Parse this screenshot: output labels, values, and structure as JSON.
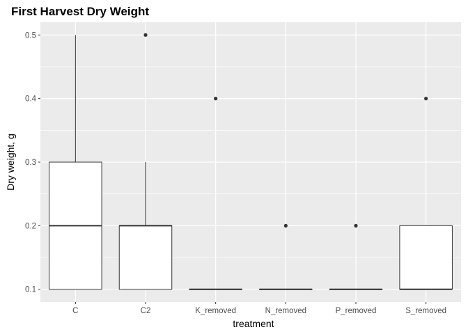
{
  "chart_data": {
    "type": "boxplot",
    "title": "First Harvest Dry Weight",
    "xlabel": "treatment",
    "ylabel": "Dry weight, g",
    "ylim": [
      0.08,
      0.52
    ],
    "yticks": [
      0.1,
      0.2,
      0.3,
      0.4,
      0.5
    ],
    "ytick_labels": [
      "0.1",
      "0.2",
      "0.3",
      "0.4",
      "0.5"
    ],
    "grid": true,
    "categories": [
      "C",
      "C2",
      "K_removed",
      "N_removed",
      "P_removed",
      "S_removed"
    ],
    "boxes": [
      {
        "category": "C",
        "q1": 0.1,
        "median": 0.2,
        "q3": 0.3,
        "whisker_low": 0.1,
        "whisker_high": 0.5,
        "outliers": []
      },
      {
        "category": "C2",
        "q1": 0.1,
        "median": 0.2,
        "q3": 0.2,
        "whisker_low": 0.1,
        "whisker_high": 0.3,
        "outliers": [
          0.5
        ]
      },
      {
        "category": "K_removed",
        "q1": 0.1,
        "median": 0.1,
        "q3": 0.1,
        "whisker_low": 0.1,
        "whisker_high": 0.1,
        "outliers": [
          0.4
        ]
      },
      {
        "category": "N_removed",
        "q1": 0.1,
        "median": 0.1,
        "q3": 0.1,
        "whisker_low": 0.1,
        "whisker_high": 0.1,
        "outliers": [
          0.2
        ]
      },
      {
        "category": "P_removed",
        "q1": 0.1,
        "median": 0.1,
        "q3": 0.1,
        "whisker_low": 0.1,
        "whisker_high": 0.1,
        "outliers": [
          0.2
        ]
      },
      {
        "category": "S_removed",
        "q1": 0.1,
        "median": 0.1,
        "q3": 0.2,
        "whisker_low": 0.1,
        "whisker_high": 0.2,
        "outliers": [
          0.4
        ]
      }
    ],
    "colors": {
      "panel_background": "#ebebeb",
      "grid_major": "#ffffff",
      "box_fill": "#ffffff",
      "box_line": "#333333",
      "outlier": "#333333",
      "tick_text": "#4d4d4d"
    }
  }
}
